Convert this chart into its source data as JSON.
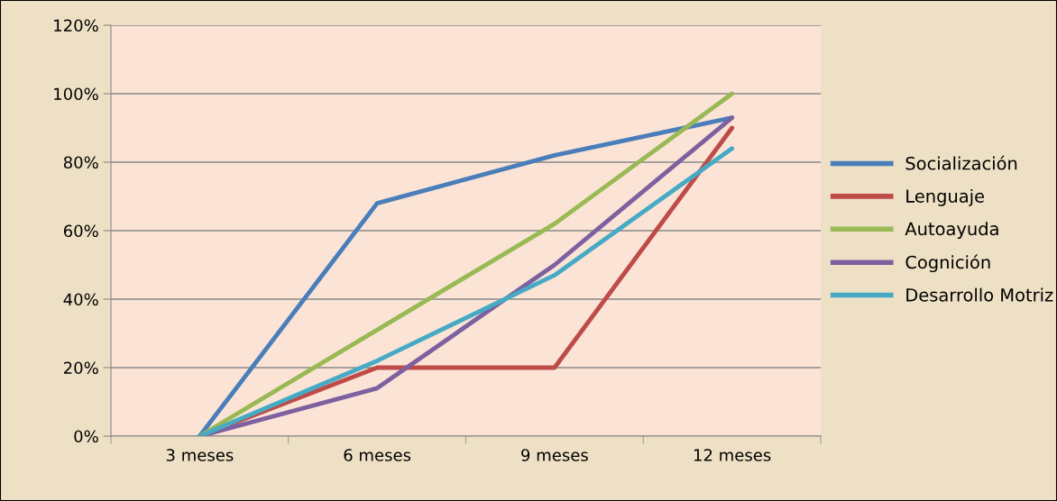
{
  "chart_data": {
    "type": "line",
    "categories": [
      "3 meses",
      "6 meses",
      "9 meses",
      "12 meses"
    ],
    "series": [
      {
        "name": "Socialización",
        "color": "#4a7ebb",
        "values": [
          0,
          0.68,
          0.82,
          0.93
        ]
      },
      {
        "name": "Lenguaje",
        "color": "#be4b48",
        "values": [
          0,
          0.2,
          0.2,
          0.9
        ]
      },
      {
        "name": "Autoayuda",
        "color": "#98b954",
        "values": [
          0,
          0.31,
          0.62,
          1.0
        ]
      },
      {
        "name": "Cognición",
        "color": "#7d60a0",
        "values": [
          0,
          0.14,
          0.5,
          0.93
        ]
      },
      {
        "name": "Desarrollo Motriz",
        "color": "#46aac5",
        "values": [
          0,
          0.22,
          0.47,
          0.84
        ]
      }
    ],
    "ylim": [
      0,
      1.2
    ],
    "yticks": [
      {
        "value": 0,
        "label": "0%"
      },
      {
        "value": 0.2,
        "label": "20%"
      },
      {
        "value": 0.4,
        "label": "40%"
      },
      {
        "value": 0.6,
        "label": "60%"
      },
      {
        "value": 0.8,
        "label": "80%"
      },
      {
        "value": 1.0,
        "label": "100%"
      },
      {
        "value": 1.2,
        "label": "120%"
      }
    ],
    "grid": "y",
    "legend": "right",
    "marker": "none",
    "line_style": "solid"
  }
}
